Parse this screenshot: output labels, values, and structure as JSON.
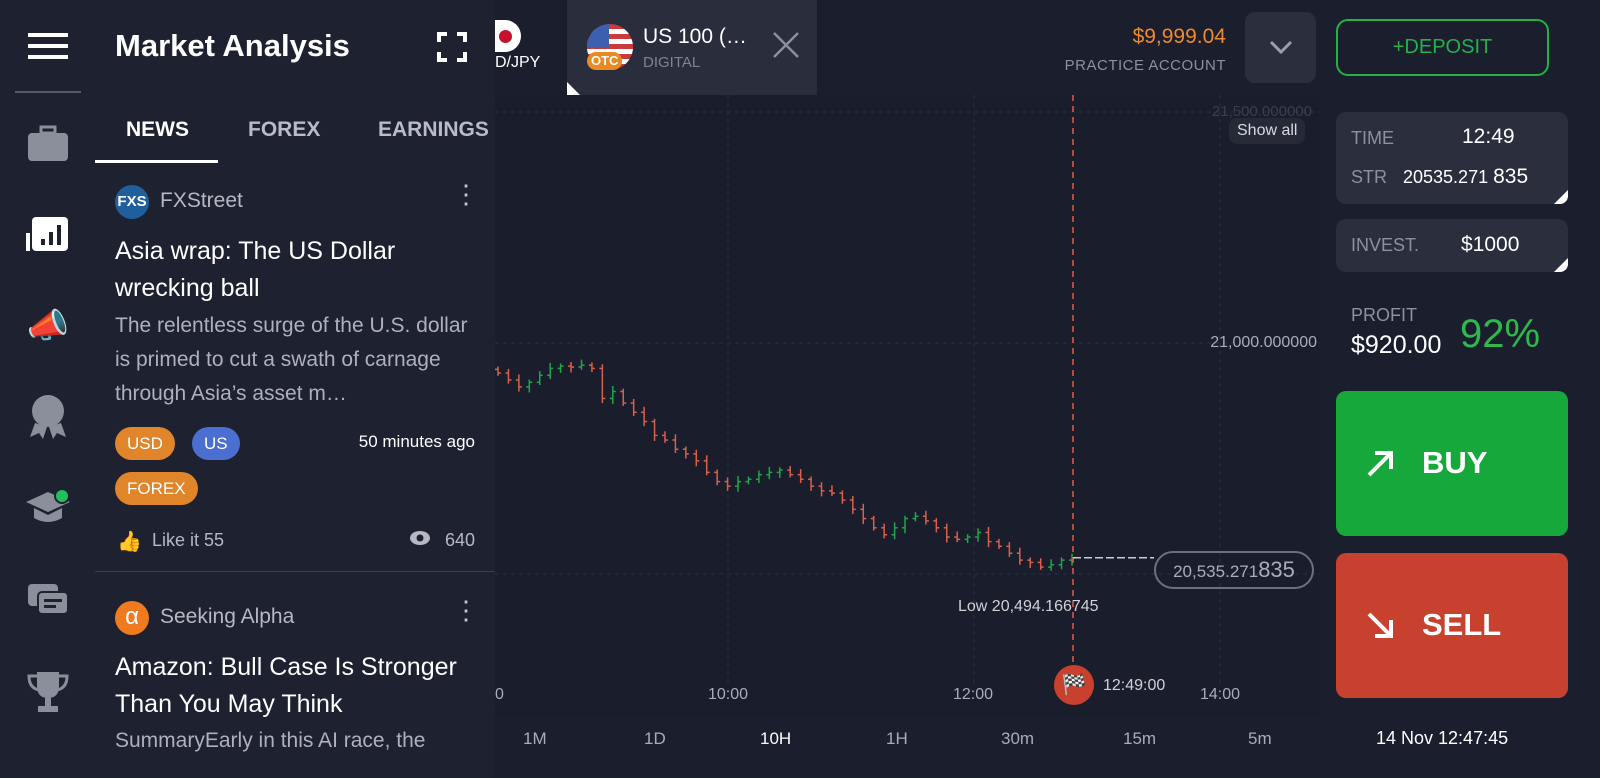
{
  "header": {
    "title": "Market Analysis"
  },
  "rail": {
    "items": [
      "menu-icon",
      "portfolio-icon",
      "market-analysis-icon",
      "promo-icon",
      "achievements-icon",
      "education-icon",
      "chat-icon",
      "tournaments-icon"
    ]
  },
  "news": {
    "tabs": [
      "NEWS",
      "FOREX",
      "EARNINGS"
    ],
    "active_tab": "NEWS",
    "items": [
      {
        "source": "FXStreet",
        "logo": "FXS",
        "title": "Asia wrap: The US Dollar wrecking ball",
        "summary": "The relentless surge of the U.S. dollar is primed to cut a swath of carnage through Asia’s asset m…",
        "tags": [
          "USD",
          "US",
          "FOREX"
        ],
        "time": "50 minutes ago",
        "likes": "Like it 55",
        "views": "640"
      },
      {
        "source": "Seeking Alpha",
        "logo": "α",
        "title": "Amazon: Bull Case Is Stronger Than You May Think",
        "summary": "SummaryEarly in this AI race, the"
      }
    ]
  },
  "tabs": [
    {
      "label": "D/JPY",
      "active": false
    },
    {
      "label": "US 100 (…",
      "sub": "DIGITAL",
      "badge": "OTC",
      "active": true
    }
  ],
  "account": {
    "balance": "$9,999.04",
    "type": "PRACTICE ACCOUNT",
    "deposit": "+DEPOSIT"
  },
  "chart_data": {
    "type": "ohlc",
    "y_ticks": [
      "21,500.000000",
      "21,000.000000"
    ],
    "x_ticks": [
      "0",
      "10:00",
      "12:00",
      "14:00"
    ],
    "current_price": "20,535.271",
    "current_price_tail": "835",
    "low_label": "Low 20,494.166745",
    "expiry_time": "12:49:00",
    "show_all": "Show all",
    "closes": [
      20935,
      20920,
      20905,
      20915,
      20930,
      20945,
      20950,
      20948,
      20952,
      20945,
      20880,
      20895,
      20870,
      20850,
      20830,
      20800,
      20790,
      20770,
      20760,
      20745,
      20720,
      20700,
      20690,
      20700,
      20705,
      20715,
      20720,
      20725,
      20715,
      20705,
      20690,
      20680,
      20675,
      20660,
      20640,
      20620,
      20600,
      20585,
      20600,
      20620,
      20625,
      20615,
      20600,
      20580,
      20575,
      20580,
      20590,
      20570,
      20560,
      20545,
      20530,
      20525,
      20515,
      20520,
      20530,
      20535
    ],
    "up_color": "#1fa64a",
    "down_color": "#d9604b"
  },
  "timeframes": [
    "1M",
    "1D",
    "10H",
    "1H",
    "30m",
    "15m",
    "5m"
  ],
  "active_timeframe": "10H",
  "trade": {
    "time_label": "TIME",
    "time": "12:49",
    "str_label": "STR",
    "str": "20535.271",
    "str_tail": "835",
    "invest_label": "INVEST.",
    "invest": "$1000",
    "profit_label": "PROFIT",
    "profit": "$920.00",
    "percent": "92%",
    "buy": "BUY",
    "sell": "SELL",
    "clock": "14 Nov 12:47:45"
  },
  "colors": {
    "buy": "#17a83b",
    "sell": "#c8412f",
    "balance": "#f08a2b",
    "profit": "#2fb84e",
    "deposit": "#25b04a"
  }
}
